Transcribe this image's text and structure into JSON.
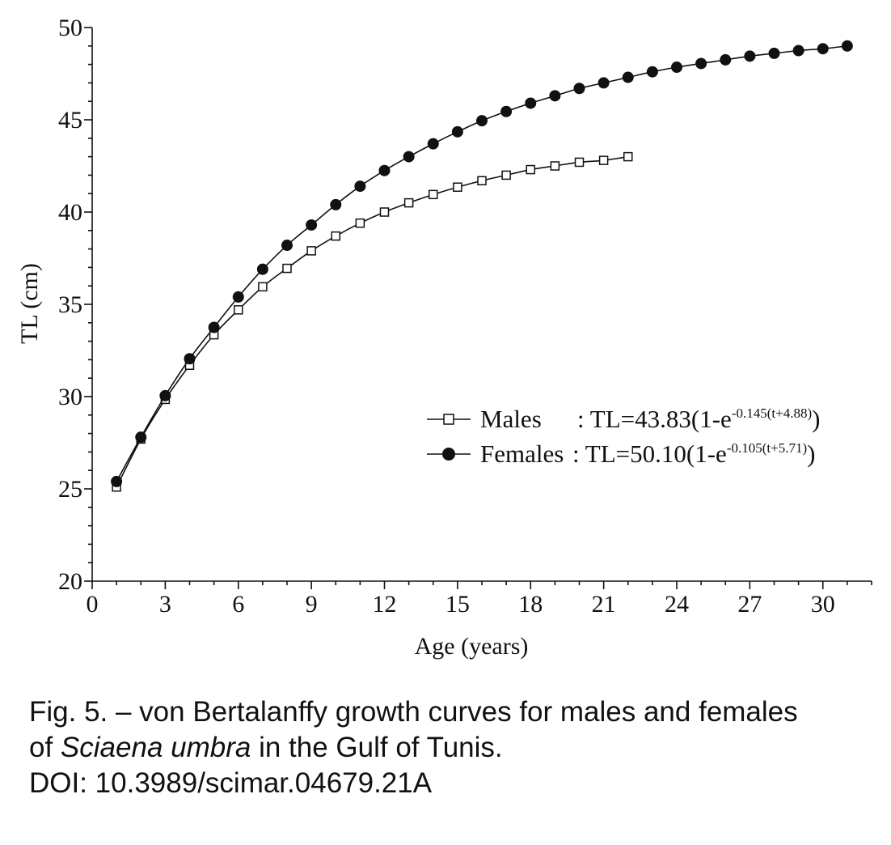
{
  "chart_data": {
    "type": "line",
    "xlabel": "Age (years)",
    "ylabel": "TL (cm)",
    "xlim": [
      0,
      32
    ],
    "ylim": [
      20,
      50
    ],
    "x_ticks": [
      0,
      3,
      6,
      9,
      12,
      15,
      18,
      21,
      24,
      27,
      30
    ],
    "y_ticks": [
      20,
      25,
      30,
      35,
      40,
      45,
      50
    ],
    "grid": false,
    "legend_position": "right, middle",
    "series": [
      {
        "name": "Males",
        "equation_prefix": ": TL=43.83(1-e",
        "equation_exponent": "-0.145(t+4.88)",
        "equation_suffix": ")",
        "marker": "open-square",
        "color": "#111111",
        "x": [
          1,
          2,
          3,
          4,
          5,
          6,
          7,
          8,
          9,
          10,
          11,
          12,
          13,
          14,
          15,
          16,
          17,
          18,
          19,
          20,
          21,
          22
        ],
        "values": [
          25.1,
          27.7,
          29.85,
          31.7,
          33.35,
          34.7,
          35.95,
          36.95,
          37.9,
          38.7,
          39.4,
          40.0,
          40.5,
          40.95,
          41.35,
          41.7,
          42.0,
          42.3,
          42.5,
          42.7,
          42.8,
          43.0
        ]
      },
      {
        "name": "Females",
        "equation_prefix": ": TL=50.10(1-e",
        "equation_exponent": "-0.105(t+5.71)",
        "equation_suffix": ")",
        "marker": "filled-circle",
        "color": "#111111",
        "x": [
          1,
          2,
          3,
          4,
          5,
          6,
          7,
          8,
          9,
          10,
          11,
          12,
          13,
          14,
          15,
          16,
          17,
          18,
          19,
          20,
          21,
          22,
          23,
          24,
          25,
          26,
          27,
          28,
          29,
          30,
          31
        ],
        "values": [
          25.4,
          27.8,
          30.05,
          32.05,
          33.75,
          35.4,
          36.9,
          38.2,
          39.3,
          40.4,
          41.4,
          42.25,
          43.0,
          43.7,
          44.35,
          44.95,
          45.45,
          45.9,
          46.3,
          46.7,
          47.0,
          47.3,
          47.6,
          47.85,
          48.05,
          48.25,
          48.45,
          48.6,
          48.75,
          48.85,
          49.0
        ]
      }
    ]
  },
  "caption": {
    "line1": "Fig. 5. – von Bertalanffy growth curves for males and females",
    "line2_prefix": "of ",
    "line2_species": "Sciaena umbra",
    "line2_suffix": " in the Gulf of Tunis.",
    "line3": "DOI: 10.3989/scimar.04679.21A"
  }
}
